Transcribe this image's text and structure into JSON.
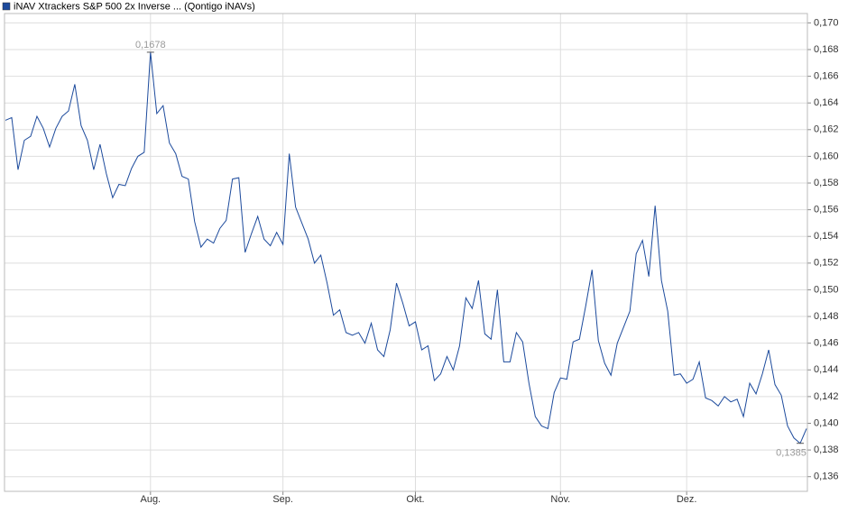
{
  "chart_data": {
    "type": "line",
    "categories": [
      null,
      null,
      null,
      null,
      null,
      null,
      null,
      null,
      null,
      null,
      null,
      null,
      null,
      null,
      null,
      null,
      null,
      null,
      null,
      null,
      null,
      null,
      null,
      "Aug.",
      null,
      null,
      null,
      null,
      null,
      null,
      null,
      null,
      null,
      null,
      null,
      null,
      null,
      null,
      null,
      null,
      null,
      null,
      null,
      null,
      "Sep.",
      null,
      null,
      null,
      null,
      null,
      null,
      null,
      null,
      null,
      null,
      null,
      null,
      null,
      null,
      null,
      null,
      null,
      null,
      null,
      null,
      "Okt.",
      null,
      null,
      null,
      null,
      null,
      null,
      null,
      null,
      null,
      null,
      null,
      null,
      null,
      null,
      null,
      null,
      null,
      null,
      null,
      null,
      null,
      null,
      "Nov.",
      null,
      null,
      null,
      null,
      null,
      null,
      null,
      null,
      null,
      null,
      null,
      null,
      null,
      null,
      null,
      null,
      null,
      null,
      null,
      "Dez.",
      null,
      null,
      null,
      null,
      null,
      null,
      null,
      null,
      null,
      null,
      null,
      null,
      null,
      null,
      null,
      null,
      null,
      null,
      null
    ],
    "series": [
      {
        "name": "iNAV Xtrackers S&P 500 2x Inverse ... (Qontigo iNAVs)",
        "color": "#1c4a9c",
        "values": [
          0.1627,
          0.1629,
          0.159,
          0.1612,
          0.1615,
          0.163,
          0.1621,
          0.1607,
          0.1621,
          0.163,
          0.1634,
          0.1654,
          0.1623,
          0.1612,
          0.159,
          0.1609,
          0.1587,
          0.1569,
          0.1579,
          0.1578,
          0.1591,
          0.16,
          0.1603,
          0.1678,
          0.1632,
          0.1638,
          0.161,
          0.1602,
          0.1585,
          0.1583,
          0.1551,
          0.1532,
          0.1538,
          0.1535,
          0.1546,
          0.1552,
          0.1583,
          0.1584,
          0.1528,
          0.1542,
          0.1555,
          0.1538,
          0.1533,
          0.1543,
          0.1534,
          0.1602,
          0.1562,
          0.155,
          0.1538,
          0.152,
          0.1526,
          0.1505,
          0.1481,
          0.1485,
          0.1468,
          0.1466,
          0.1468,
          0.146,
          0.1475,
          0.1455,
          0.145,
          0.147,
          0.1505,
          0.149,
          0.1473,
          0.1476,
          0.1455,
          0.1458,
          0.1432,
          0.1437,
          0.145,
          0.144,
          0.1458,
          0.1494,
          0.1486,
          0.1507,
          0.1467,
          0.1463,
          0.15,
          0.1446,
          0.1446,
          0.1468,
          0.1461,
          0.143,
          0.1405,
          0.1398,
          0.1396,
          0.1423,
          0.1434,
          0.1433,
          0.1461,
          0.1463,
          0.1488,
          0.1515,
          0.1462,
          0.1445,
          0.1436,
          0.146,
          0.1472,
          0.1484,
          0.1527,
          0.1537,
          0.151,
          0.1563,
          0.1507,
          0.1484,
          0.1436,
          0.1437,
          0.143,
          0.1433,
          0.1446,
          0.1419,
          0.1417,
          0.1413,
          0.142,
          0.1416,
          0.1418,
          0.1405,
          0.143,
          0.1422,
          0.1437,
          0.1455,
          0.1429,
          0.1421,
          0.1398,
          0.1389,
          0.1385,
          0.1396
        ],
        "value_labels": [
          null,
          null,
          null,
          null,
          null,
          null,
          null,
          null,
          null,
          null,
          null,
          null,
          null,
          null,
          null,
          null,
          null,
          null,
          null,
          null,
          null,
          null,
          null,
          "0,1678",
          null,
          null,
          null,
          null,
          null,
          null,
          null,
          null,
          null,
          null,
          null,
          null,
          null,
          null,
          null,
          null,
          null,
          null,
          null,
          null,
          null,
          null,
          null,
          null,
          null,
          null,
          null,
          null,
          null,
          null,
          null,
          null,
          null,
          null,
          null,
          null,
          null,
          null,
          null,
          null,
          null,
          null,
          null,
          null,
          null,
          null,
          null,
          null,
          null,
          null,
          null,
          null,
          null,
          null,
          null,
          null,
          null,
          null,
          null,
          null,
          null,
          null,
          null,
          null,
          null,
          null,
          null,
          null,
          null,
          null,
          null,
          null,
          null,
          null,
          null,
          null,
          null,
          null,
          null,
          null,
          null,
          null,
          null,
          null,
          null,
          null,
          null,
          null,
          null,
          null,
          null,
          null,
          null,
          null,
          null,
          null,
          null,
          null,
          null,
          null,
          null,
          null,
          "0,1385",
          null
        ]
      }
    ],
    "ylim": [
      0.1349,
      0.1707
    ],
    "yticks": [
      {
        "value": 0.136,
        "label": "0,136"
      },
      {
        "value": 0.138,
        "label": "0,138"
      },
      {
        "value": 0.14,
        "label": "0,140"
      },
      {
        "value": 0.142,
        "label": "0,142"
      },
      {
        "value": 0.144,
        "label": "0,144"
      },
      {
        "value": 0.146,
        "label": "0,146"
      },
      {
        "value": 0.148,
        "label": "0,148"
      },
      {
        "value": 0.15,
        "label": "0,150"
      },
      {
        "value": 0.152,
        "label": "0,152"
      },
      {
        "value": 0.154,
        "label": "0,154"
      },
      {
        "value": 0.156,
        "label": "0,156"
      },
      {
        "value": 0.158,
        "label": "0,158"
      },
      {
        "value": 0.16,
        "label": "0,160"
      },
      {
        "value": 0.162,
        "label": "0,162"
      },
      {
        "value": 0.164,
        "label": "0,164"
      },
      {
        "value": 0.166,
        "label": "0,166"
      },
      {
        "value": 0.168,
        "label": "0,168"
      },
      {
        "value": 0.17,
        "label": "0,170"
      }
    ],
    "grid": true,
    "legend": "top-left"
  }
}
